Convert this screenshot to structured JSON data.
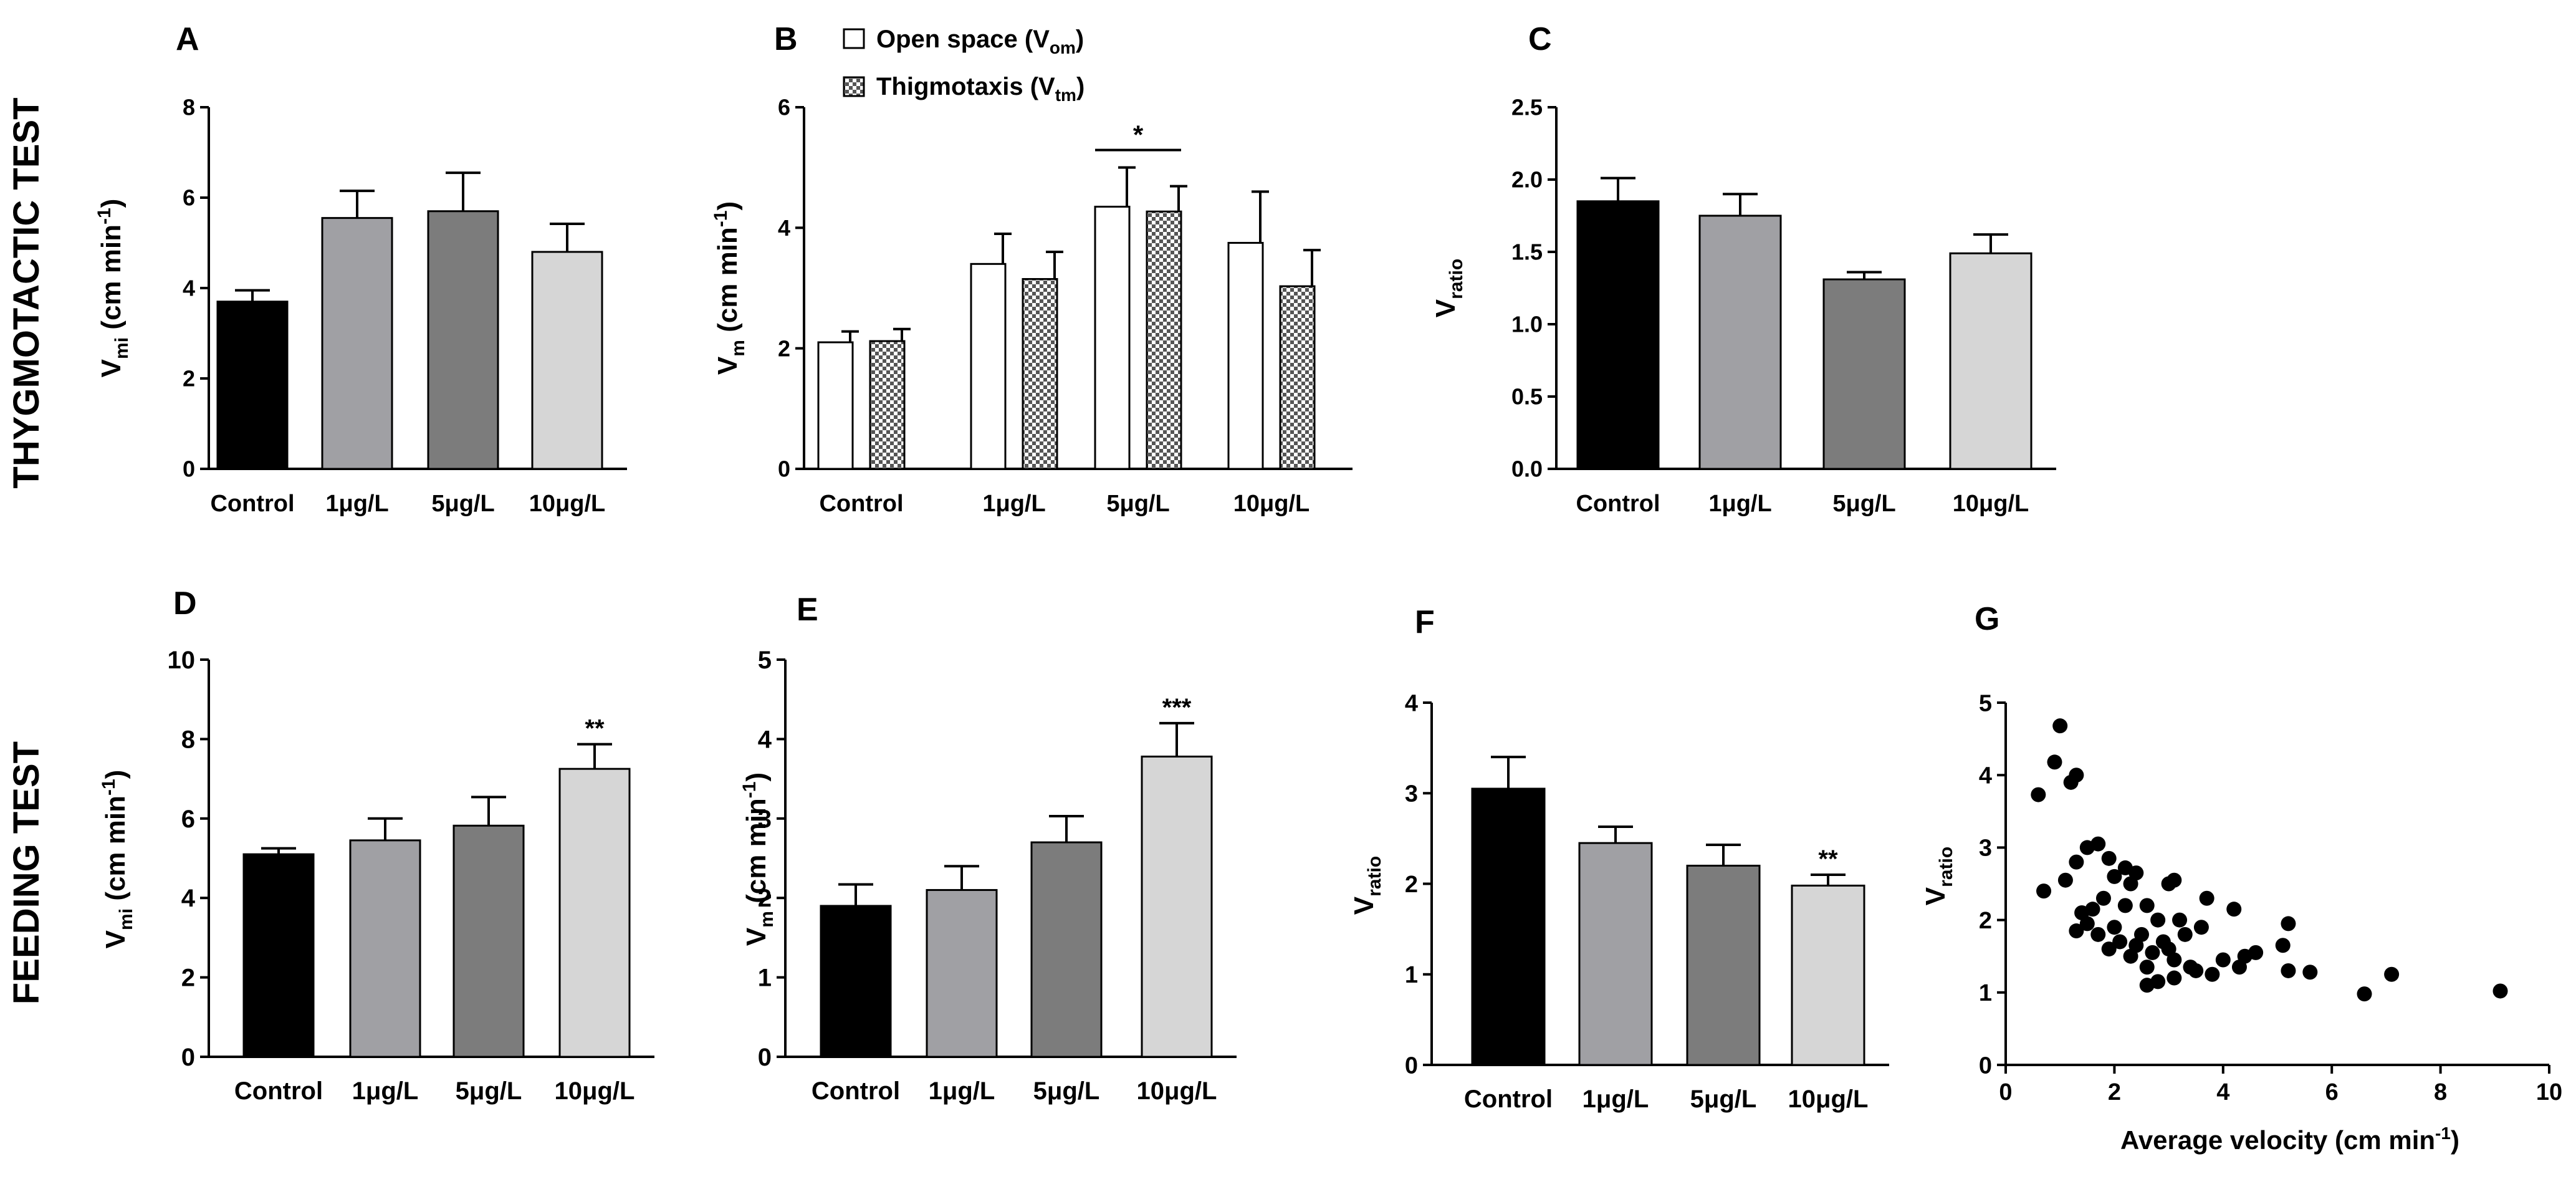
{
  "row_labels": {
    "top": "THYGMOTACTIC TEST",
    "bottom": "FEEDING TEST"
  },
  "legend": {
    "open_space": {
      "main": "Open space (V",
      "sub": "om",
      "close": ")"
    },
    "thigmotaxis": {
      "main": "Thigmotaxis (V",
      "sub": "tm",
      "close": ")"
    }
  },
  "colors": {
    "control": "#000000",
    "dose1": "#a0a0a4",
    "dose5": "#7c7c7c",
    "dose10": "#d6d6d6",
    "open_space": "#ffffff",
    "axis": "#000000"
  },
  "chart_data": [
    {
      "panel": "A",
      "type": "bar",
      "ylabel": {
        "main": "V",
        "sub": "mi",
        "unit": " (cm min",
        "sup": "-1",
        "close": ")"
      },
      "categories": [
        "Control",
        "1μg/L",
        "5μg/L",
        "10μg/L"
      ],
      "values": [
        3.7,
        5.55,
        5.7,
        4.8
      ],
      "errors": [
        0.25,
        0.6,
        0.85,
        0.62
      ],
      "colors": [
        "#000000",
        "#a0a0a4",
        "#7c7c7c",
        "#d6d6d6"
      ],
      "ylim": [
        0,
        8
      ],
      "yticks": [
        "0",
        "2",
        "4",
        "6",
        "8"
      ],
      "annotations": []
    },
    {
      "panel": "B",
      "type": "bar",
      "ylabel": {
        "main": "V",
        "sub": "m",
        "unit": " (cm min",
        "sup": "-1",
        "close": ")"
      },
      "categories": [
        "Control",
        "1μg/L",
        "5μg/L",
        "10μg/L"
      ],
      "series": [
        {
          "name": "Open space (Vom)",
          "values": [
            2.1,
            3.4,
            4.35,
            3.75
          ],
          "errors": [
            0.18,
            0.5,
            0.65,
            0.85
          ]
        },
        {
          "name": "Thigmotaxis (Vtm)",
          "values": [
            2.12,
            3.15,
            4.27,
            3.03
          ],
          "errors": [
            0.2,
            0.45,
            0.42,
            0.6
          ]
        }
      ],
      "ylim": [
        0,
        6
      ],
      "yticks": [
        "0",
        "2",
        "4",
        "6"
      ],
      "significance": {
        "label": "*",
        "category": 2
      }
    },
    {
      "panel": "C",
      "type": "bar",
      "ylabel": {
        "main": "V",
        "sub": "ratio"
      },
      "categories": [
        "Control",
        "1μg/L",
        "5μg/L",
        "10μg/L"
      ],
      "values": [
        1.85,
        1.75,
        1.31,
        1.49
      ],
      "errors": [
        0.16,
        0.15,
        0.05,
        0.13
      ],
      "colors": [
        "#000000",
        "#a0a0a4",
        "#7c7c7c",
        "#d6d6d6"
      ],
      "ylim": [
        0,
        2.5
      ],
      "yticks": [
        "0.0",
        "0.5",
        "1.0",
        "1.5",
        "2.0",
        "2.5"
      ],
      "annotations": []
    },
    {
      "panel": "D",
      "type": "bar",
      "ylabel": {
        "main": "V",
        "sub": "mi",
        "unit": " (cm min",
        "sup": "-1",
        "close": ")"
      },
      "categories": [
        "Control",
        "1μg/L",
        "5μg/L",
        "10μg/L"
      ],
      "values": [
        5.1,
        5.45,
        5.82,
        7.25
      ],
      "errors": [
        0.15,
        0.55,
        0.72,
        0.62
      ],
      "colors": [
        "#000000",
        "#a0a0a4",
        "#7c7c7c",
        "#d6d6d6"
      ],
      "ylim": [
        0,
        10
      ],
      "yticks": [
        "0",
        "2",
        "4",
        "6",
        "8",
        "10"
      ],
      "annotations": [
        "",
        "",
        "",
        "**"
      ]
    },
    {
      "panel": "E",
      "type": "bar",
      "ylabel": {
        "main": "V",
        "sub": "m",
        "unit": " (cm min",
        "sup": "-1",
        "close": ")"
      },
      "categories": [
        "Control",
        "1μg/L",
        "5μg/L",
        "10μg/L"
      ],
      "values": [
        1.9,
        2.1,
        2.7,
        3.78
      ],
      "errors": [
        0.27,
        0.3,
        0.33,
        0.42
      ],
      "colors": [
        "#000000",
        "#a0a0a4",
        "#7c7c7c",
        "#d6d6d6"
      ],
      "ylim": [
        0,
        5
      ],
      "yticks": [
        "0",
        "1",
        "2",
        "3",
        "4",
        "5"
      ],
      "annotations": [
        "",
        "",
        "",
        "***"
      ]
    },
    {
      "panel": "F",
      "type": "bar",
      "ylabel": {
        "main": "V",
        "sub": "ratio"
      },
      "categories": [
        "Control",
        "1μg/L",
        "5μg/L",
        "10μg/L"
      ],
      "values": [
        3.05,
        2.45,
        2.2,
        1.98
      ],
      "errors": [
        0.35,
        0.18,
        0.23,
        0.12
      ],
      "colors": [
        "#000000",
        "#a0a0a4",
        "#7c7c7c",
        "#d6d6d6"
      ],
      "ylim": [
        0,
        4
      ],
      "yticks": [
        "0",
        "1",
        "2",
        "3",
        "4"
      ],
      "annotations": [
        "",
        "",
        "",
        "**"
      ]
    },
    {
      "panel": "G",
      "type": "scatter",
      "ylabel": {
        "main": "V",
        "sub": "ratio"
      },
      "xlabel": {
        "main": "Average velocity (cm min",
        "sup": "-1",
        "close": ")"
      },
      "xlim": [
        0,
        10
      ],
      "xticks": [
        "0",
        "2",
        "4",
        "6",
        "8",
        "10"
      ],
      "ylim": [
        0,
        5
      ],
      "yticks": [
        "0",
        "1",
        "2",
        "3",
        "4",
        "5"
      ],
      "points": [
        [
          0.6,
          3.73
        ],
        [
          1.0,
          4.68
        ],
        [
          0.9,
          4.18
        ],
        [
          1.2,
          3.9
        ],
        [
          1.3,
          4.0
        ],
        [
          0.7,
          2.4
        ],
        [
          1.1,
          2.55
        ],
        [
          1.3,
          2.8
        ],
        [
          1.5,
          3.0
        ],
        [
          1.7,
          3.05
        ],
        [
          1.9,
          2.85
        ],
        [
          2.0,
          2.6
        ],
        [
          2.2,
          2.72
        ],
        [
          2.3,
          2.5
        ],
        [
          2.4,
          2.65
        ],
        [
          2.6,
          2.2
        ],
        [
          2.8,
          2.0
        ],
        [
          3.0,
          2.5
        ],
        [
          3.1,
          2.55
        ],
        [
          1.4,
          2.1
        ],
        [
          1.5,
          1.95
        ],
        [
          1.6,
          2.15
        ],
        [
          1.7,
          1.8
        ],
        [
          1.8,
          2.3
        ],
        [
          1.9,
          1.6
        ],
        [
          2.0,
          1.9
        ],
        [
          2.1,
          1.7
        ],
        [
          2.2,
          2.2
        ],
        [
          2.3,
          1.5
        ],
        [
          2.5,
          1.8
        ],
        [
          2.6,
          1.35
        ],
        [
          2.7,
          1.55
        ],
        [
          2.8,
          1.15
        ],
        [
          2.9,
          1.7
        ],
        [
          3.0,
          1.6
        ],
        [
          3.1,
          1.45
        ],
        [
          3.2,
          2.0
        ],
        [
          3.3,
          1.8
        ],
        [
          3.5,
          1.3
        ],
        [
          3.6,
          1.9
        ],
        [
          3.7,
          2.3
        ],
        [
          3.8,
          1.25
        ],
        [
          4.0,
          1.45
        ],
        [
          4.2,
          2.15
        ],
        [
          4.3,
          1.35
        ],
        [
          4.4,
          1.5
        ],
        [
          4.6,
          1.55
        ],
        [
          5.1,
          1.65
        ],
        [
          5.2,
          1.3
        ],
        [
          5.2,
          1.95
        ],
        [
          5.6,
          1.28
        ],
        [
          6.6,
          0.98
        ],
        [
          7.1,
          1.25
        ],
        [
          9.1,
          1.02
        ],
        [
          1.3,
          1.85
        ],
        [
          2.6,
          1.1
        ],
        [
          3.1,
          1.2
        ],
        [
          3.4,
          1.35
        ],
        [
          2.4,
          1.65
        ]
      ]
    }
  ]
}
